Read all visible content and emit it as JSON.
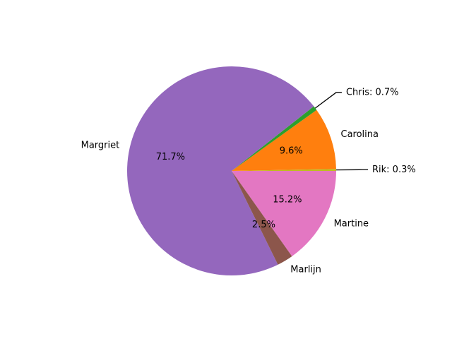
{
  "chart_data": {
    "type": "pie",
    "title": "",
    "slices": [
      {
        "label": "Rik",
        "value": 0.3,
        "pct_text": "0.3%",
        "color": "#bcbd22",
        "callout": true,
        "outside_text": "Rik: 0.3%"
      },
      {
        "label": "Carolina",
        "value": 9.6,
        "pct_text": "9.6%",
        "color": "#ff7f0e",
        "callout": false
      },
      {
        "label": "Chris",
        "value": 0.7,
        "pct_text": "0.7%",
        "color": "#2ca02c",
        "callout": true,
        "outside_text": "Chris: 0.7%"
      },
      {
        "label": "Margriet",
        "value": 71.7,
        "pct_text": "71.7%",
        "color": "#9467bd",
        "callout": false
      },
      {
        "label": "Marlijn",
        "value": 2.5,
        "pct_text": "2.5%",
        "color": "#8c564b",
        "callout": false
      },
      {
        "label": "Martine",
        "value": 15.2,
        "pct_text": "15.2%",
        "color": "#e377c2",
        "callout": false
      }
    ],
    "direction": "counterclockwise",
    "legend": "none"
  }
}
